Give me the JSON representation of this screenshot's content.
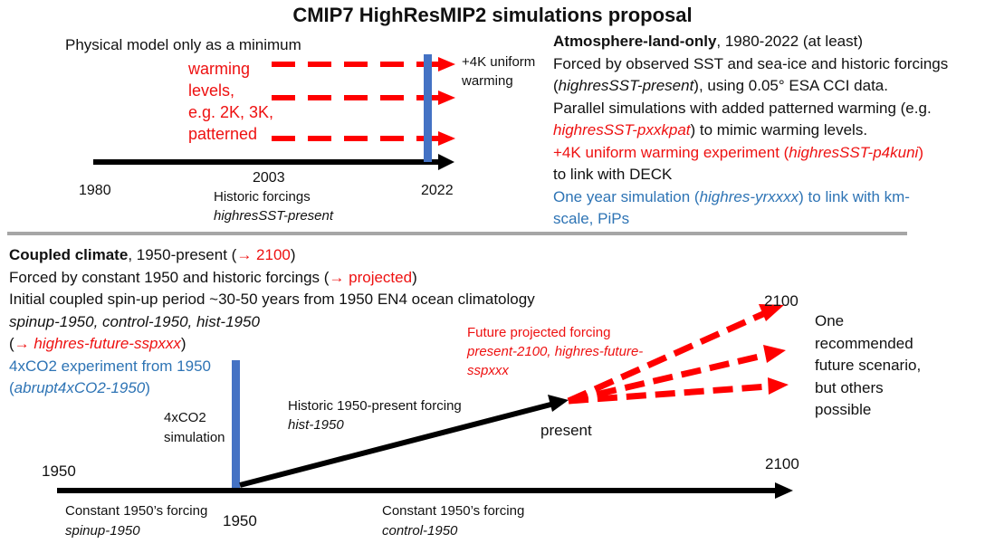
{
  "title": "CMIP7 HighResMIP2 simulations proposal",
  "atmos": {
    "subtitle": "Physical model only as a minimum",
    "warming_lines": [
      "warming",
      "levels,",
      "e.g. 2K, 3K,",
      "patterned"
    ],
    "uniform_label": [
      "+4K uniform",
      "warming"
    ],
    "year_start": "1980",
    "year_mid": "2003",
    "year_end": "2022",
    "forcing_label": "Historic forcings",
    "forcing_exp": "highresSST-present",
    "desc": {
      "head_bold": "Atmosphere-land-only",
      "head_rest": ", 1980-2022 (at least)",
      "l2": "Forced by observed SST and sea-ice and historic forcings",
      "l3_open": "(",
      "l3_exp": "highresSST-present",
      "l3_rest": "), using 0.05° ESA CCI data.",
      "l4": "Parallel simulations with added patterned warming (e.g.",
      "l5_exp": "highresSST-pxxkpat",
      "l5_rest": ") to mimic warming levels.",
      "l6_a": "+4K uniform warming experiment (",
      "l6_exp": "highresSST-p4kuni",
      "l6_b": ")",
      "l7": "to link with DECK",
      "l8_a": "One year simulation (",
      "l8_exp": "highres-yrxxxx",
      "l8_b": ") to link with km-",
      "l9": "scale, PiPs"
    }
  },
  "coupled": {
    "l1_bold": "Coupled climate",
    "l1_rest": ", 1950-present (",
    "l1_arrow": "→ 2100",
    "l1_close": ")",
    "l2_a": "Forced by constant 1950 and historic forcings (",
    "l2_arrow": "→ projected",
    "l2_close": ")",
    "l3": "Initial coupled spin-up period ~30-50 years from 1950 EN4 ocean climatology",
    "l4": "spinup-1950, control-1950, hist-1950",
    "l5_open": "(",
    "l5_red": "→ highres-future-sspxxx",
    "l5_close": ")",
    "l6": "4xCO2 experiment from 1950",
    "l7_open": "(",
    "l7_exp": "abrupt4xCO2-1950",
    "l7_close": ")",
    "sim_label": [
      "4xCO2",
      "simulation"
    ],
    "hist_label": "Historic 1950-present forcing",
    "hist_exp": "hist-1950",
    "future_label": [
      "Future projected forcing",
      "present-2100, highres-future-",
      "sspxxx"
    ],
    "present": "present",
    "year_2100_top": "2100",
    "recommend": [
      "One",
      "recommended",
      "future scenario,",
      "but others",
      "possible"
    ],
    "year_1950_left": "1950",
    "year_2100_right": "2100",
    "year_1950_bottom": "1950",
    "const_left": "Constant 1950’s forcing",
    "spinup_exp": "spinup-1950",
    "const_right": "Constant 1950’s forcing",
    "control_exp": "control-1950"
  },
  "colors": {
    "red": "#ee1111",
    "blue": "#2e74b5",
    "black": "#000000",
    "gray": "#a6a6a6"
  }
}
